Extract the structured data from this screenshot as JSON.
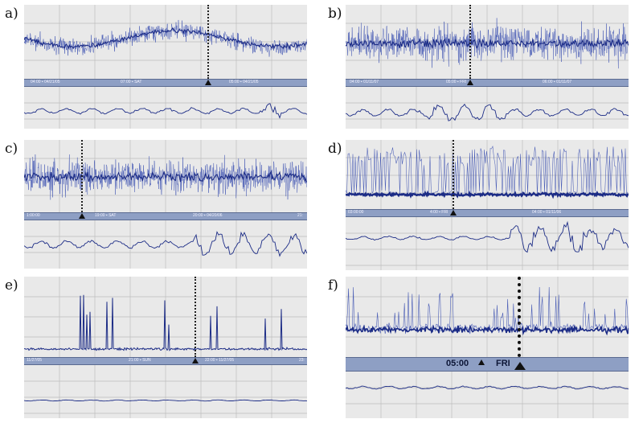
{
  "panels": [
    {
      "id": "a",
      "label": "a)",
      "times": [
        "04:00 ▪ 04/21/05",
        "07:00 ▪ SAT",
        "05:00 ▪ 04/21/05"
      ]
    },
    {
      "id": "b",
      "label": "b)",
      "times": [
        "04:00 ▪ 01/11/07",
        "05:00 ▪ FRI",
        "06:00 ▪ 01/11/07"
      ]
    },
    {
      "id": "c",
      "label": "c)",
      "times": [
        "1:00:00",
        "19:00 ▪ SAT",
        "20:00 ▪ 04/20/06",
        "21:"
      ]
    },
    {
      "id": "d",
      "label": "d)",
      "times": [
        "03:00:00",
        "4:00 ▪ FRI",
        "04:00 ▪ 01/11/06"
      ]
    },
    {
      "id": "e",
      "label": "e)",
      "times": [
        "11/27/05",
        "21:00 ▪ SUN",
        "22:00 ▪ 11/27/05",
        "23:"
      ]
    },
    {
      "id": "f",
      "label": "f)",
      "times": [
        "05:00",
        "FRI"
      ]
    }
  ],
  "colors": {
    "trace": "#1c2c86",
    "trace_light": "#3a4fb0",
    "bar": "#8e9fc4",
    "panel_bg": "#e9e9e9",
    "grid": "#bdbdbd"
  }
}
